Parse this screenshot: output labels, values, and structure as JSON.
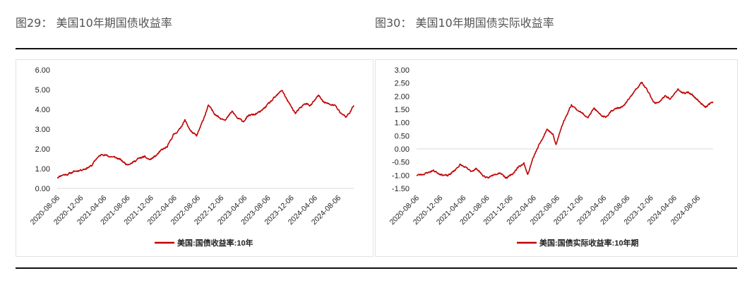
{
  "captions": {
    "left": "图29： 美国10年期国债收益率",
    "right": "图30： 美国10年期国债实际收益率"
  },
  "chart_data": [
    {
      "type": "line",
      "x_ticks": [
        "2020-08-06",
        "2020-12-06",
        "2021-04-06",
        "2021-08-06",
        "2021-12-06",
        "2022-04-06",
        "2022-08-06",
        "2022-12-06",
        "2023-04-06",
        "2023-08-06",
        "2023-12-06",
        "2024-04-06",
        "2024-08-06"
      ],
      "y_ticks": [
        "0.00",
        "1.00",
        "2.00",
        "3.00",
        "4.00",
        "5.00",
        "6.00"
      ],
      "ylim": [
        0,
        6
      ],
      "xlim": [
        "2020-08-06",
        "2024-10-25"
      ],
      "grid": false,
      "legend_position": "bottom",
      "series": [
        {
          "name": "美国:国债收益率:10年",
          "color": "#c00000",
          "points": [
            [
              "2020-08-06",
              0.55
            ],
            [
              "2020-09-01",
              0.68
            ],
            [
              "2020-10-01",
              0.72
            ],
            [
              "2020-11-01",
              0.85
            ],
            [
              "2020-12-01",
              0.92
            ],
            [
              "2021-01-01",
              1.0
            ],
            [
              "2021-02-01",
              1.15
            ],
            [
              "2021-03-01",
              1.55
            ],
            [
              "2021-03-31",
              1.74
            ],
            [
              "2021-05-01",
              1.62
            ],
            [
              "2021-06-01",
              1.58
            ],
            [
              "2021-07-01",
              1.45
            ],
            [
              "2021-08-01",
              1.22
            ],
            [
              "2021-09-01",
              1.3
            ],
            [
              "2021-10-01",
              1.5
            ],
            [
              "2021-11-01",
              1.6
            ],
            [
              "2021-12-01",
              1.45
            ],
            [
              "2022-01-01",
              1.65
            ],
            [
              "2022-02-01",
              1.95
            ],
            [
              "2022-03-01",
              2.1
            ],
            [
              "2022-04-01",
              2.7
            ],
            [
              "2022-05-01",
              2.95
            ],
            [
              "2022-06-01",
              3.45
            ],
            [
              "2022-07-01",
              2.9
            ],
            [
              "2022-08-01",
              2.65
            ],
            [
              "2022-09-01",
              3.4
            ],
            [
              "2022-10-01",
              4.2
            ],
            [
              "2022-11-01",
              3.8
            ],
            [
              "2022-12-01",
              3.55
            ],
            [
              "2023-01-01",
              3.5
            ],
            [
              "2023-02-01",
              3.9
            ],
            [
              "2023-03-01",
              3.55
            ],
            [
              "2023-04-01",
              3.4
            ],
            [
              "2023-05-01",
              3.7
            ],
            [
              "2023-06-01",
              3.75
            ],
            [
              "2023-07-01",
              3.9
            ],
            [
              "2023-08-01",
              4.2
            ],
            [
              "2023-09-01",
              4.5
            ],
            [
              "2023-10-19",
              4.98
            ],
            [
              "2023-11-15",
              4.45
            ],
            [
              "2023-12-27",
              3.8
            ],
            [
              "2024-01-15",
              4.0
            ],
            [
              "2024-02-15",
              4.3
            ],
            [
              "2024-03-15",
              4.2
            ],
            [
              "2024-04-25",
              4.7
            ],
            [
              "2024-05-20",
              4.4
            ],
            [
              "2024-06-20",
              4.25
            ],
            [
              "2024-07-20",
              4.2
            ],
            [
              "2024-08-15",
              3.85
            ],
            [
              "2024-09-16",
              3.62
            ],
            [
              "2024-10-05",
              3.85
            ],
            [
              "2024-10-25",
              4.2
            ]
          ]
        }
      ]
    },
    {
      "type": "line",
      "x_ticks": [
        "2020-08-06",
        "2020-12-06",
        "2021-04-06",
        "2021-08-06",
        "2021-12-06",
        "2022-04-06",
        "2022-08-06",
        "2022-12-06",
        "2023-04-06",
        "2023-08-06",
        "2023-12-06",
        "2024-04-06",
        "2024-08-06"
      ],
      "y_ticks": [
        "3.00",
        "2.50",
        "2.00",
        "1.50",
        "1.00",
        "0.50",
        "0.00",
        "-0.50",
        "-1.00",
        "-1.50"
      ],
      "ylim": [
        -1.5,
        3
      ],
      "xlim": [
        "2020-08-06",
        "2024-10-25"
      ],
      "grid": false,
      "zero_line": true,
      "legend_position": "bottom",
      "series": [
        {
          "name": "美国:国债实际收益率:10年期",
          "color": "#c00000",
          "points": [
            [
              "2020-08-06",
              -1.0
            ],
            [
              "2020-09-15",
              -0.95
            ],
            [
              "2020-11-01",
              -0.82
            ],
            [
              "2020-12-15",
              -0.98
            ],
            [
              "2021-01-15",
              -1.02
            ],
            [
              "2021-02-15",
              -0.85
            ],
            [
              "2021-03-20",
              -0.6
            ],
            [
              "2021-04-15",
              -0.7
            ],
            [
              "2021-05-15",
              -0.85
            ],
            [
              "2021-06-15",
              -0.75
            ],
            [
              "2021-07-15",
              -1.0
            ],
            [
              "2021-08-10",
              -1.12
            ],
            [
              "2021-09-15",
              -0.95
            ],
            [
              "2021-10-15",
              -0.9
            ],
            [
              "2021-11-15",
              -1.1
            ],
            [
              "2021-12-15",
              -0.98
            ],
            [
              "2022-01-15",
              -0.7
            ],
            [
              "2022-02-15",
              -0.55
            ],
            [
              "2022-03-07",
              -0.98
            ],
            [
              "2022-04-01",
              -0.4
            ],
            [
              "2022-05-01",
              0.1
            ],
            [
              "2022-06-15",
              0.75
            ],
            [
              "2022-07-15",
              0.55
            ],
            [
              "2022-08-01",
              0.15
            ],
            [
              "2022-09-01",
              0.9
            ],
            [
              "2022-10-20",
              1.68
            ],
            [
              "2022-11-15",
              1.5
            ],
            [
              "2022-12-15",
              1.35
            ],
            [
              "2023-01-15",
              1.2
            ],
            [
              "2023-02-15",
              1.55
            ],
            [
              "2023-03-15",
              1.3
            ],
            [
              "2023-04-15",
              1.2
            ],
            [
              "2023-05-15",
              1.45
            ],
            [
              "2023-06-15",
              1.55
            ],
            [
              "2023-07-15",
              1.6
            ],
            [
              "2023-08-15",
              1.9
            ],
            [
              "2023-09-15",
              2.2
            ],
            [
              "2023-10-20",
              2.52
            ],
            [
              "2023-11-20",
              2.2
            ],
            [
              "2023-12-27",
              1.72
            ],
            [
              "2024-01-20",
              1.8
            ],
            [
              "2024-02-20",
              2.0
            ],
            [
              "2024-03-20",
              1.9
            ],
            [
              "2024-04-25",
              2.28
            ],
            [
              "2024-05-20",
              2.1
            ],
            [
              "2024-06-20",
              2.15
            ],
            [
              "2024-07-20",
              1.98
            ],
            [
              "2024-08-20",
              1.75
            ],
            [
              "2024-09-16",
              1.6
            ],
            [
              "2024-10-25",
              1.78
            ]
          ]
        }
      ]
    }
  ]
}
